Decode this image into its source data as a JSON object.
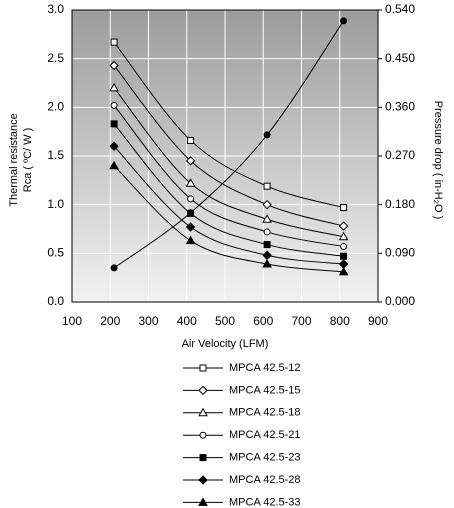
{
  "chart_data": {
    "type": "line",
    "xlabel": "Air Velocity (LFM)",
    "ylabel": [
      "Thermal resistance",
      "Rca ( ºC/ W )"
    ],
    "y2label": "Pressure drop ( in-H₂O )",
    "xlim": [
      100,
      900
    ],
    "xticks": [
      100,
      200,
      300,
      400,
      500,
      600,
      700,
      800,
      900
    ],
    "ylim": [
      0,
      3
    ],
    "yticks": [
      {
        "value": 0,
        "label": "0.0"
      },
      0.5,
      {
        "value": 1,
        "label": "1.0"
      },
      1.5,
      {
        "value": 2,
        "label": "2.0"
      },
      2.5,
      {
        "value": 3,
        "label": "3.0"
      }
    ],
    "y2lim": [
      0,
      0.54
    ],
    "y2ticks": [
      {
        "value": 0,
        "label": "0.000"
      },
      {
        "value": 0.09,
        "label": "0.090"
      },
      {
        "value": 0.18,
        "label": "0.180"
      },
      {
        "value": 0.27,
        "label": "0.270"
      },
      {
        "value": 0.36,
        "label": "0.360"
      },
      {
        "value": 0.45,
        "label": "0.450"
      },
      {
        "value": 0.54,
        "label": "0.540"
      }
    ],
    "grid": true,
    "legend": "bottom",
    "x": [
      210,
      410,
      610,
      810
    ],
    "series": [
      {
        "name": "MPCA 42.5-12",
        "color": "#000000",
        "marker": "square",
        "marker_fill": "#ffffff",
        "values": [
          2.67,
          1.66,
          1.19,
          0.97
        ]
      },
      {
        "name": "MPCA 42.5-15",
        "color": "#000000",
        "marker": "diamond",
        "marker_fill": "#ffffff",
        "values": [
          2.43,
          1.45,
          1.0,
          0.78
        ]
      },
      {
        "name": "MPCA 42.5-18",
        "color": "#000000",
        "marker": "triangle",
        "marker_fill": "#ffffff",
        "values": [
          2.2,
          1.22,
          0.85,
          0.67
        ]
      },
      {
        "name": "MPCA 42.5-21",
        "color": "#000000",
        "marker": "circle",
        "marker_fill": "#ffffff",
        "values": [
          2.02,
          1.06,
          0.72,
          0.57
        ]
      },
      {
        "name": "MPCA 42.5-23",
        "color": "#000000",
        "marker": "square",
        "marker_fill": "#000000",
        "values": [
          1.83,
          0.91,
          0.59,
          0.47
        ]
      },
      {
        "name": "MPCA 42.5-28",
        "color": "#000000",
        "marker": "diamond",
        "marker_fill": "#000000",
        "values": [
          1.6,
          0.77,
          0.48,
          0.39
        ]
      },
      {
        "name": "MPCA 42.5-33",
        "color": "#000000",
        "marker": "triangle",
        "marker_fill": "#000000",
        "values": [
          1.4,
          0.63,
          0.39,
          0.31
        ]
      },
      {
        "color": "#000000",
        "marker": "circle",
        "marker_fill": "#000000",
        "axis": "y2",
        "values": [
          0.063,
          0.165,
          0.309,
          0.52
        ]
      }
    ]
  }
}
